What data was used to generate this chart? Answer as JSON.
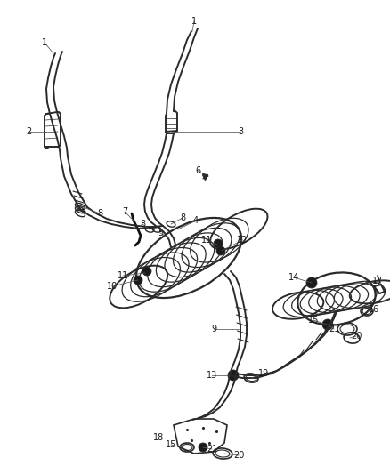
{
  "bg_color": "#ffffff",
  "line_color": "#2a2a2a",
  "label_color": "#1a1a1a",
  "pipe_lw": 1.4,
  "label_fs": 7.0,
  "leader_lw": 0.55,
  "leader_color": "#555555"
}
